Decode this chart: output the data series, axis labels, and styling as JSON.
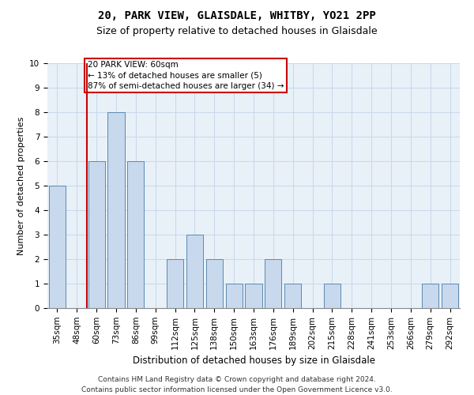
{
  "title": "20, PARK VIEW, GLAISDALE, WHITBY, YO21 2PP",
  "subtitle": "Size of property relative to detached houses in Glaisdale",
  "xlabel": "Distribution of detached houses by size in Glaisdale",
  "ylabel": "Number of detached properties",
  "categories": [
    "35sqm",
    "48sqm",
    "60sqm",
    "73sqm",
    "86sqm",
    "99sqm",
    "112sqm",
    "125sqm",
    "138sqm",
    "150sqm",
    "163sqm",
    "176sqm",
    "189sqm",
    "202sqm",
    "215sqm",
    "228sqm",
    "241sqm",
    "253sqm",
    "266sqm",
    "279sqm",
    "292sqm"
  ],
  "values": [
    5,
    0,
    6,
    8,
    6,
    0,
    2,
    3,
    2,
    1,
    1,
    2,
    1,
    0,
    1,
    0,
    0,
    0,
    0,
    1,
    1
  ],
  "bar_color": "#c8d9ed",
  "bar_edge_color": "#5a8ab0",
  "annotation_text": "20 PARK VIEW: 60sqm\n← 13% of detached houses are smaller (5)\n87% of semi-detached houses are larger (34) →",
  "annotation_box_color": "#ffffff",
  "annotation_box_edge": "#cc0000",
  "ylim": [
    0,
    10
  ],
  "yticks": [
    0,
    1,
    2,
    3,
    4,
    5,
    6,
    7,
    8,
    9,
    10
  ],
  "footnote": "Contains HM Land Registry data © Crown copyright and database right 2024.\nContains public sector information licensed under the Open Government Licence v3.0.",
  "grid_color": "#c8d8ea",
  "bg_color": "#e8f0f8",
  "red_line_color": "#cc0000",
  "title_fontsize": 10,
  "subtitle_fontsize": 9,
  "xlabel_fontsize": 8.5,
  "ylabel_fontsize": 8,
  "tick_fontsize": 7.5,
  "annot_fontsize": 7.5,
  "footnote_fontsize": 6.5
}
